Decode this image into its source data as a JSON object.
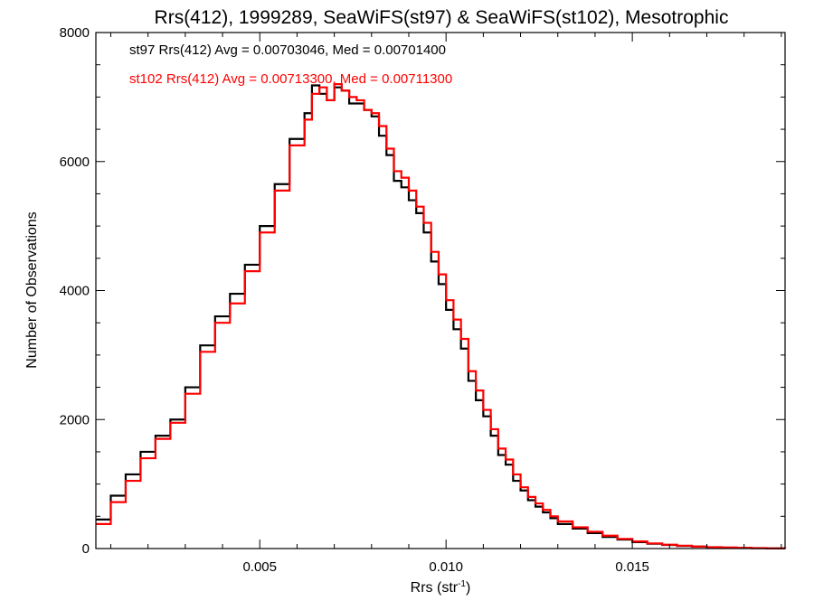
{
  "chart_data": {
    "type": "line",
    "title": "Rrs(412), 1999289, SeaWiFS(st97) & SeaWiFS(st102), Mesotrophic",
    "xlabel": "Rrs (str",
    "xlabel_sup": "-1",
    "xlabel_close": ")",
    "ylabel": "Number of Observations",
    "xlim": [
      0.0006,
      0.0191
    ],
    "ylim": [
      0,
      8000
    ],
    "xticks": [
      0.005,
      0.01,
      0.015
    ],
    "xtick_labels": [
      "0.005",
      "0.010",
      "0.015"
    ],
    "yticks": [
      0,
      2000,
      4000,
      6000,
      8000
    ],
    "ytick_labels": [
      "0",
      "2000",
      "4000",
      "6000",
      "8000"
    ],
    "grid": false,
    "legend_position": "top-left",
    "annotations": [
      {
        "text": "st97 Rrs(412) Avg = 0.00703046, Med = 0.00701400",
        "color": "#000000"
      },
      {
        "text": "st102 Rrs(412) Avg = 0.00713300, Med = 0.00711300",
        "color": "#ff0000"
      }
    ],
    "series": [
      {
        "color": "#000000",
        "x": [
          0.0006,
          0.001,
          0.0014,
          0.0018,
          0.0022,
          0.0026,
          0.003,
          0.0034,
          0.0038,
          0.0042,
          0.0046,
          0.005,
          0.0054,
          0.0058,
          0.0062,
          0.0064,
          0.0066,
          0.0068,
          0.007,
          0.0072,
          0.0074,
          0.0076,
          0.0078,
          0.008,
          0.0082,
          0.0084,
          0.0086,
          0.0088,
          0.009,
          0.0092,
          0.0094,
          0.0096,
          0.0098,
          0.01,
          0.0102,
          0.0104,
          0.0106,
          0.0108,
          0.011,
          0.0112,
          0.0114,
          0.0116,
          0.0118,
          0.012,
          0.0122,
          0.0124,
          0.0126,
          0.0128,
          0.013,
          0.0134,
          0.0138,
          0.0142,
          0.0146,
          0.015,
          0.0154,
          0.0158,
          0.0162,
          0.0166,
          0.017,
          0.0174,
          0.0178,
          0.0182,
          0.0186,
          0.0191
        ],
        "y": [
          450,
          820,
          1150,
          1500,
          1750,
          2000,
          2500,
          3150,
          3600,
          3950,
          4400,
          5000,
          5650,
          6350,
          6750,
          7180,
          7050,
          6950,
          7150,
          7100,
          6900,
          6900,
          6800,
          6700,
          6400,
          6100,
          5700,
          5600,
          5400,
          5200,
          4900,
          4450,
          4100,
          3700,
          3400,
          3100,
          2600,
          2300,
          2050,
          1750,
          1450,
          1300,
          1050,
          900,
          750,
          650,
          560,
          470,
          380,
          310,
          240,
          180,
          140,
          100,
          75,
          55,
          40,
          30,
          20,
          15,
          10,
          6,
          3,
          1
        ]
      },
      {
        "color": "#ff0000",
        "x": [
          0.0006,
          0.001,
          0.0014,
          0.0018,
          0.0022,
          0.0026,
          0.003,
          0.0034,
          0.0038,
          0.0042,
          0.0046,
          0.005,
          0.0054,
          0.0058,
          0.0062,
          0.0064,
          0.0066,
          0.0068,
          0.007,
          0.0072,
          0.0074,
          0.0076,
          0.0078,
          0.008,
          0.0082,
          0.0084,
          0.0086,
          0.0088,
          0.009,
          0.0092,
          0.0094,
          0.0096,
          0.0098,
          0.01,
          0.0102,
          0.0104,
          0.0106,
          0.0108,
          0.011,
          0.0112,
          0.0114,
          0.0116,
          0.0118,
          0.012,
          0.0122,
          0.0124,
          0.0126,
          0.0128,
          0.013,
          0.0134,
          0.0138,
          0.0142,
          0.0146,
          0.015,
          0.0154,
          0.0158,
          0.0162,
          0.0166,
          0.017,
          0.0174,
          0.0178,
          0.0182,
          0.0186,
          0.0191
        ],
        "y": [
          380,
          720,
          1050,
          1400,
          1700,
          1950,
          2400,
          3050,
          3500,
          3800,
          4300,
          4900,
          5550,
          6250,
          6650,
          7050,
          7150,
          6950,
          7200,
          7100,
          7000,
          6950,
          6800,
          6750,
          6550,
          6200,
          5850,
          5750,
          5550,
          5300,
          5050,
          4600,
          4250,
          3850,
          3550,
          3250,
          2750,
          2450,
          2150,
          1850,
          1550,
          1380,
          1150,
          950,
          800,
          700,
          600,
          500,
          420,
          330,
          260,
          200,
          150,
          110,
          80,
          60,
          45,
          32,
          22,
          16,
          11,
          7,
          3,
          1
        ]
      }
    ]
  }
}
